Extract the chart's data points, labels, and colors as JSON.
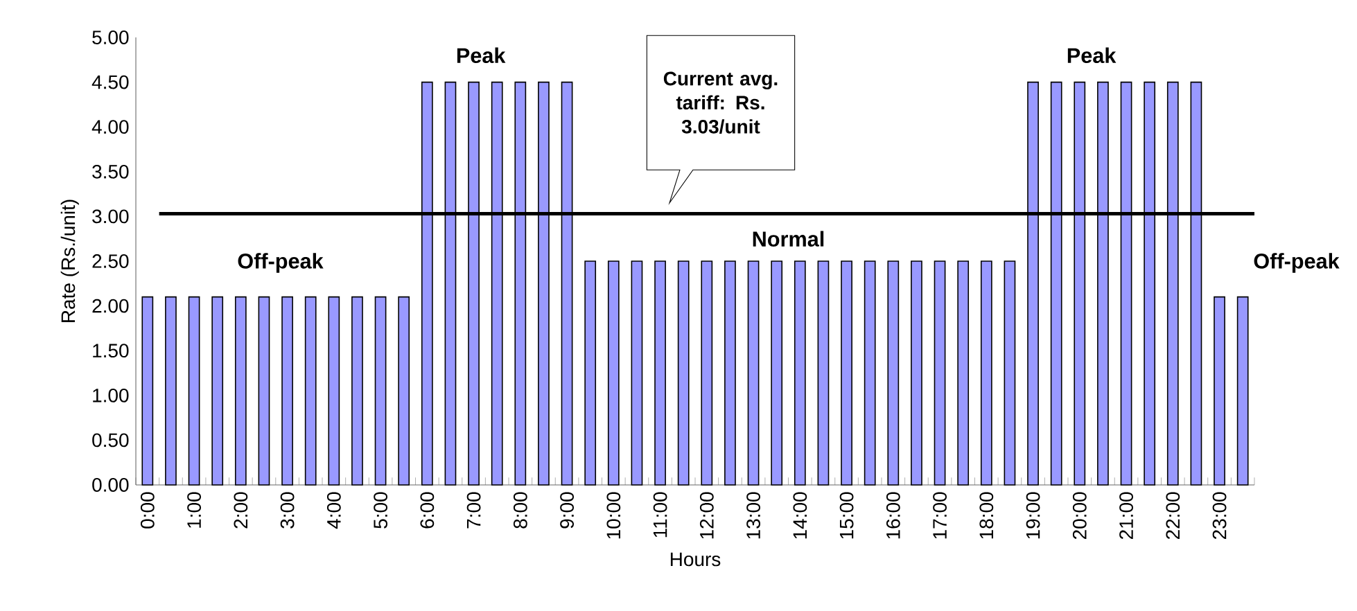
{
  "chart_data": {
    "type": "bar",
    "xlabel": "Hours",
    "ylabel": "Rate (Rs./unit)",
    "categories": [
      "0:00",
      null,
      "1:00",
      null,
      "2:00",
      null,
      "3:00",
      null,
      "4:00",
      null,
      "5:00",
      null,
      "6:00",
      null,
      "7:00",
      null,
      "8:00",
      null,
      "9:00",
      null,
      "10:00",
      null,
      "11:00",
      null,
      "12:00",
      null,
      "13:00",
      null,
      "14:00",
      null,
      "15:00",
      null,
      "16:00",
      null,
      "17:00",
      null,
      "18:00",
      null,
      "19:00",
      null,
      "20:00",
      null,
      "21:00",
      null,
      "22:00",
      null,
      "23:00",
      null
    ],
    "values": [
      2.1,
      2.1,
      2.1,
      2.1,
      2.1,
      2.1,
      2.1,
      2.1,
      2.1,
      2.1,
      2.1,
      2.1,
      4.5,
      4.5,
      4.5,
      4.5,
      4.5,
      4.5,
      4.5,
      2.5,
      2.5,
      2.5,
      2.5,
      2.5,
      2.5,
      2.5,
      2.5,
      2.5,
      2.5,
      2.5,
      2.5,
      2.5,
      2.5,
      2.5,
      2.5,
      2.5,
      2.5,
      2.5,
      4.5,
      4.5,
      4.5,
      4.5,
      4.5,
      4.5,
      4.5,
      4.5,
      2.1,
      2.1
    ],
    "color": "#9999ff",
    "ylim": [
      0,
      5
    ],
    "yticks": [
      {
        "value": 0,
        "label": "0.00"
      },
      {
        "value": 0.5,
        "label": "0.50"
      },
      {
        "value": 1,
        "label": "1.00"
      },
      {
        "value": 1.5,
        "label": "1.50"
      },
      {
        "value": 2,
        "label": "2.00"
      },
      {
        "value": 2.5,
        "label": "2.50"
      },
      {
        "value": 3,
        "label": "3.00"
      },
      {
        "value": 3.5,
        "label": "3.50"
      },
      {
        "value": 4,
        "label": "4.00"
      },
      {
        "value": 4.5,
        "label": "4.50"
      },
      {
        "value": 5,
        "label": "5.00"
      }
    ],
    "ref_lines": [
      {
        "axis": "y",
        "value": 3.03,
        "label": "Current avg. tariff: Rs. 3.03/unit",
        "color": "#000000"
      }
    ],
    "annotations": [
      "Off-peak",
      "Peak",
      "Normal",
      "Peak",
      "Off-peak"
    ]
  }
}
